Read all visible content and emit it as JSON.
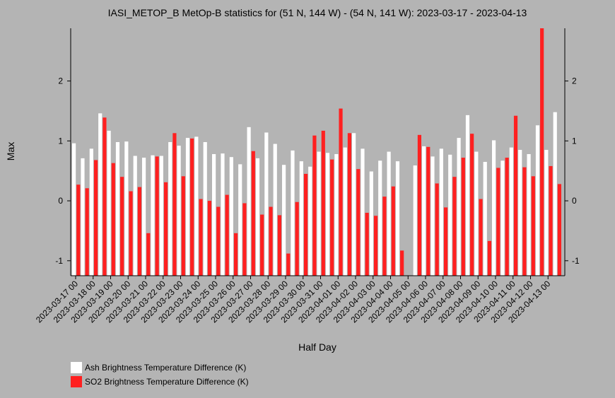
{
  "chart_data": {
    "type": "bar",
    "title": "IASI_METOP_B MetOp-B statistics for (51 N, 144 W) - (54 N, 141 W): 2023-03-17 - 2023-04-13",
    "xlabel": "Half Day",
    "ylabel": "Max",
    "ylim": [
      -1.25,
      2.88
    ],
    "yticks": [
      -1,
      0,
      1,
      2
    ],
    "xticks": [
      "2023-03-17 00",
      "2023-03-18 00",
      "2023-03-19 00",
      "2023-03-20 00",
      "2023-03-21 00",
      "2023-03-22 00",
      "2023-03-23 00",
      "2023-03-24 00",
      "2023-03-25 00",
      "2023-03-26 00",
      "2023-03-27 00",
      "2023-03-28 00",
      "2023-03-29 00",
      "2023-03-30 00",
      "2023-03-31 00",
      "2023-04-01 00",
      "2023-04-02 00",
      "2023-04-03 00",
      "2023-04-04 00",
      "2023-04-05 00",
      "2023-04-06 00",
      "2023-04-07 00",
      "2023-04-08 00",
      "2023-04-09 00",
      "2023-04-10 00",
      "2023-04-11 00",
      "2023-04-12 00",
      "2023-04-13 00"
    ],
    "legend_placement": "bottom-left",
    "series": [
      {
        "name": "Ash Brightness Temperature Difference (K)",
        "color": "#ffffff",
        "values": [
          0.96,
          0.71,
          0.87,
          1.46,
          1.17,
          0.98,
          0.99,
          0.75,
          0.72,
          0.76,
          0.75,
          0.98,
          0.92,
          1.05,
          1.07,
          0.98,
          0.78,
          0.79,
          0.73,
          0.61,
          1.23,
          0.71,
          1.14,
          0.95,
          0.6,
          0.84,
          0.66,
          0.57,
          0.82,
          0.8,
          0.78,
          0.89,
          1.13,
          0.87,
          0.49,
          0.67,
          0.82,
          0.66,
          null,
          0.59,
          0.91,
          0.74,
          0.87,
          0.77,
          1.05,
          1.43,
          0.82,
          0.65,
          1.01,
          0.67,
          0.89,
          0.85,
          0.78,
          1.26,
          0.85,
          1.48
        ]
      },
      {
        "name": "SO2 Brightness Temperature Difference (K)",
        "color": "#ff2020",
        "values": [
          0.27,
          0.21,
          0.68,
          1.39,
          0.63,
          0.4,
          0.16,
          0.23,
          -0.54,
          0.74,
          0.31,
          1.13,
          0.41,
          1.04,
          0.03,
          0.0,
          -0.1,
          0.1,
          -0.54,
          -0.04,
          0.83,
          -0.23,
          -0.1,
          -0.24,
          -0.88,
          -0.02,
          0.45,
          1.09,
          1.17,
          0.69,
          1.54,
          1.13,
          0.53,
          -0.2,
          -0.25,
          0.07,
          0.24,
          -0.83,
          null,
          1.1,
          0.9,
          0.29,
          -0.11,
          0.4,
          0.72,
          1.12,
          0.03,
          -0.67,
          0.55,
          0.72,
          1.42,
          0.56,
          0.41,
          2.88,
          0.58,
          0.28
        ]
      }
    ]
  }
}
